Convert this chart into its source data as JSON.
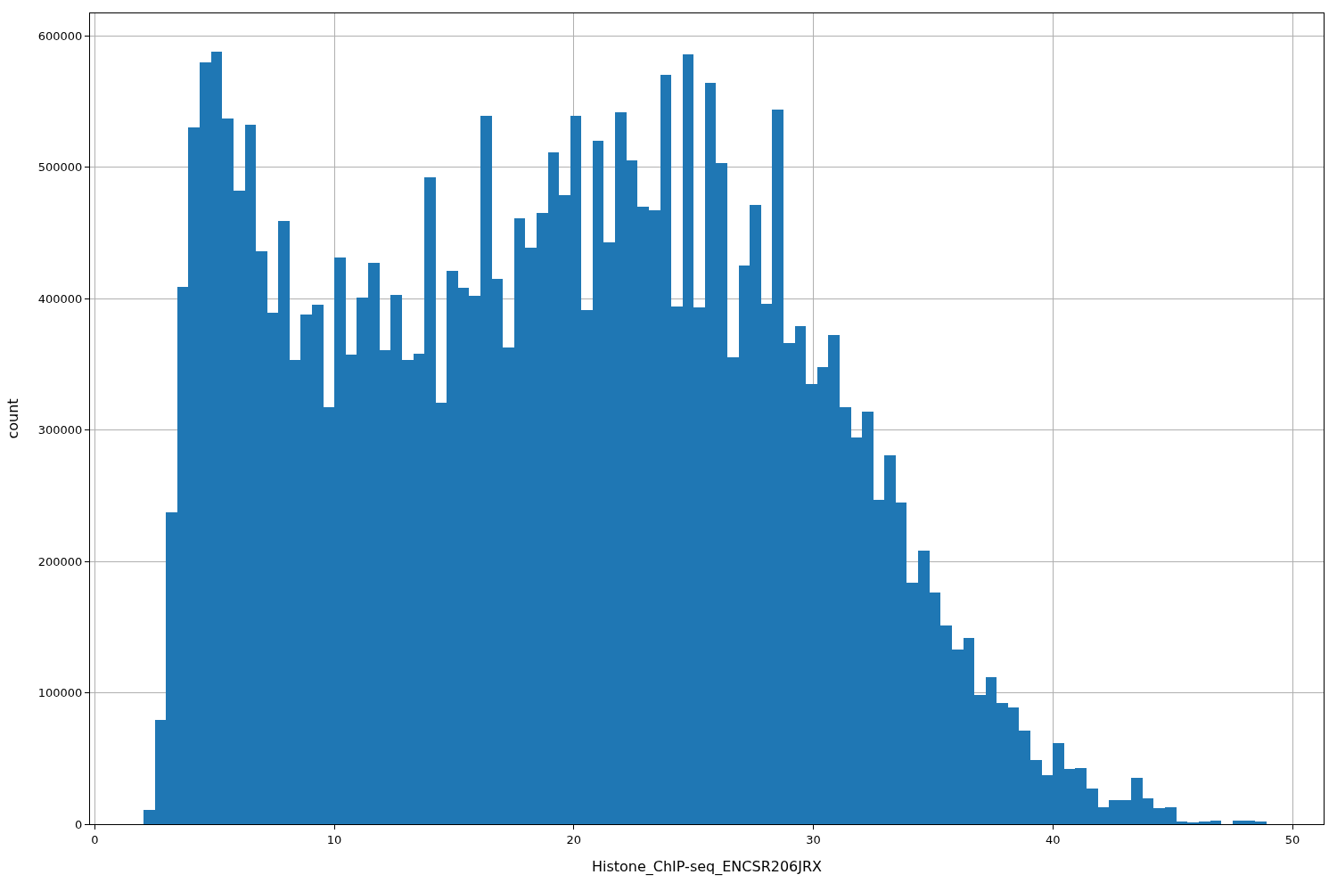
{
  "chart_data": {
    "type": "histogram",
    "xlabel": "Histone_ChIP-seq_ENCSR206JRX",
    "ylabel": "count",
    "color": "#1f77b4",
    "bins": [
      2.04,
      2.51,
      2.98,
      3.45,
      3.91,
      4.38,
      4.85,
      5.32,
      5.79,
      6.26,
      6.73,
      7.19,
      7.66,
      8.13,
      8.6,
      9.07,
      9.54,
      10.01,
      10.47,
      10.94,
      11.41,
      11.88,
      12.35,
      12.82,
      13.29,
      13.76,
      14.22,
      14.69,
      15.16,
      15.63,
      16.1,
      16.57,
      17.04,
      17.5,
      17.97,
      18.44,
      18.91,
      19.38,
      19.85,
      20.32,
      20.78,
      21.25,
      21.72,
      22.19,
      22.66,
      23.13,
      23.6,
      24.06,
      24.53,
      25.0,
      25.47,
      25.94,
      26.41,
      26.88,
      27.34,
      27.81,
      28.28,
      28.75,
      29.22,
      29.69,
      30.16,
      30.62,
      31.09,
      31.56,
      32.03,
      32.5,
      32.97,
      33.44,
      33.9,
      34.37,
      34.84,
      35.31,
      35.78,
      36.25,
      36.72,
      37.19,
      37.65,
      38.12,
      38.59,
      39.06,
      39.53,
      40.0,
      40.47,
      40.93,
      41.4,
      41.87,
      42.34,
      42.81,
      43.28,
      43.75,
      44.21,
      44.68,
      45.15,
      45.62,
      46.09,
      46.56,
      47.03,
      47.49,
      47.96,
      48.43,
      48.9
    ],
    "values": [
      11000,
      79000,
      237000,
      409000,
      530000,
      580000,
      588000,
      537000,
      482000,
      532000,
      436000,
      389000,
      459000,
      353000,
      388000,
      395000,
      317000,
      431000,
      357000,
      401000,
      427000,
      361000,
      403000,
      353000,
      358000,
      492000,
      321000,
      421000,
      408000,
      402000,
      539000,
      415000,
      363000,
      461000,
      439000,
      465000,
      511000,
      479000,
      539000,
      391000,
      520000,
      443000,
      542000,
      505000,
      470000,
      467000,
      570000,
      394000,
      586000,
      393000,
      564000,
      503000,
      355000,
      425000,
      471000,
      396000,
      544000,
      366000,
      379000,
      335000,
      348000,
      372000,
      317000,
      294000,
      314000,
      247000,
      281000,
      245000,
      184000,
      208000,
      176000,
      151000,
      133000,
      142000,
      98000,
      112000,
      92000,
      89000,
      71000,
      49000,
      37000,
      62000,
      42000,
      43000,
      27000,
      13000,
      18000,
      18000,
      35000,
      20000,
      12000,
      13000,
      2000,
      1000,
      2000,
      3000,
      0,
      3000,
      3000,
      2000
    ],
    "xlim": [
      -0.2,
      51.3
    ],
    "ylim": [
      0,
      617000
    ],
    "xticks": [
      0,
      10,
      20,
      30,
      40,
      50
    ],
    "yticks": [
      0,
      100000,
      200000,
      300000,
      400000,
      500000,
      600000
    ],
    "grid": true
  }
}
